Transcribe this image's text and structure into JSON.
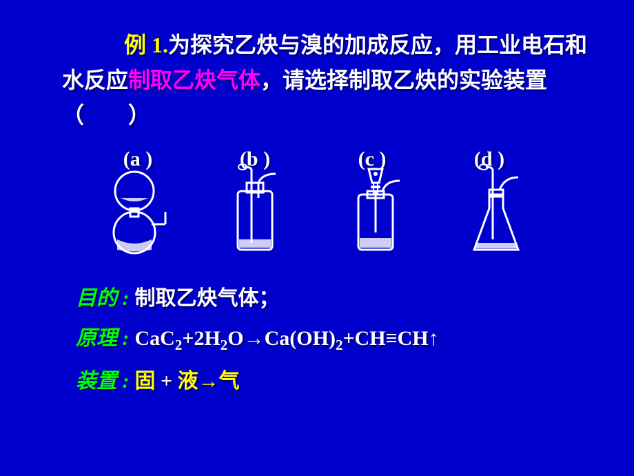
{
  "question": {
    "example_label": "例 1.",
    "part1": "为探究乙炔与溴的加成反应，用工业电石和水反应",
    "highlight": "制取乙炔气体",
    "part2": "，请选择制取乙炔的实验装置（　　）"
  },
  "options": {
    "a": "(a )",
    "b": "(b )",
    "c": "(c )",
    "d": "(d )"
  },
  "purpose": {
    "label": "目的 :",
    "value": "制取乙炔气体；"
  },
  "principle": {
    "label": "原理 :",
    "value_html": "CaC<sub>2</sub>+2H<sub>2</sub>O→Ca(OH)<sub>2</sub>+CH≡CH↑"
  },
  "apparatus": {
    "label": "装置 :",
    "solid": "固 ",
    "plus": "+ ",
    "liquid": "液",
    "arrow": "→",
    "gas": "气"
  },
  "colors": {
    "background": "#0000cc",
    "text": "#ffffff",
    "example": "#ffff00",
    "highlight": "#ff00ff",
    "label": "#00ff00",
    "yellow": "#ffff00"
  }
}
